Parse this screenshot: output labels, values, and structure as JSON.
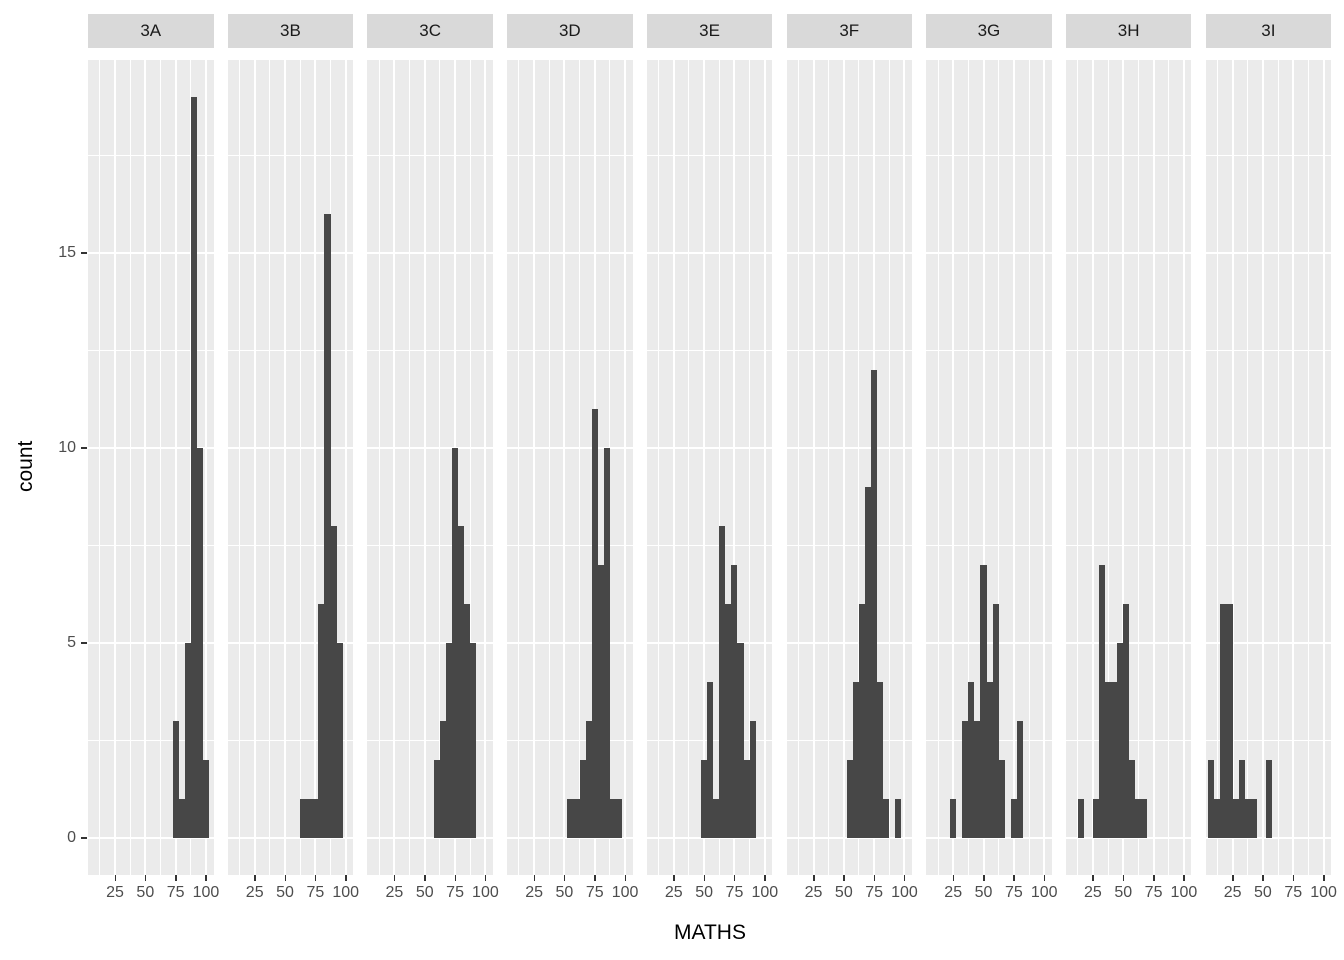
{
  "chart_data": {
    "type": "histogram",
    "faceted": true,
    "title": "",
    "xlabel": "MATHS",
    "ylabel": "count",
    "x_ticks": [
      25,
      50,
      75,
      100
    ],
    "x_minor_ticks": [
      12.5,
      37.5,
      62.5,
      87.5
    ],
    "y_ticks": [
      0,
      5,
      10,
      15
    ],
    "y_minor_ticks": [
      2.5,
      7.5,
      12.5,
      17.5
    ],
    "binwidth": 5,
    "xlim": [
      2.75,
      106.2
    ],
    "ylim": [
      -0.95,
      19.95
    ],
    "legend": "none",
    "grid": "on",
    "facets": [
      {
        "label": "3A",
        "bins": [
          {
            "x": 72.5,
            "count": 3
          },
          {
            "x": 77.5,
            "count": 1
          },
          {
            "x": 82.5,
            "count": 5
          },
          {
            "x": 87.5,
            "count": 19
          },
          {
            "x": 92.5,
            "count": 10
          },
          {
            "x": 97.5,
            "count": 2
          }
        ]
      },
      {
        "label": "3B",
        "bins": [
          {
            "x": 62.5,
            "count": 1
          },
          {
            "x": 67.5,
            "count": 1
          },
          {
            "x": 72.5,
            "count": 1
          },
          {
            "x": 77.5,
            "count": 6
          },
          {
            "x": 82.5,
            "count": 16
          },
          {
            "x": 87.5,
            "count": 8
          },
          {
            "x": 92.5,
            "count": 5
          }
        ]
      },
      {
        "label": "3C",
        "bins": [
          {
            "x": 57.5,
            "count": 2
          },
          {
            "x": 62.5,
            "count": 3
          },
          {
            "x": 67.5,
            "count": 5
          },
          {
            "x": 72.5,
            "count": 10
          },
          {
            "x": 77.5,
            "count": 8
          },
          {
            "x": 82.5,
            "count": 6
          },
          {
            "x": 87.5,
            "count": 5
          }
        ]
      },
      {
        "label": "3D",
        "bins": [
          {
            "x": 52.5,
            "count": 1
          },
          {
            "x": 57.5,
            "count": 1
          },
          {
            "x": 62.5,
            "count": 2
          },
          {
            "x": 67.5,
            "count": 3
          },
          {
            "x": 72.5,
            "count": 11
          },
          {
            "x": 77.5,
            "count": 7
          },
          {
            "x": 82.5,
            "count": 10
          },
          {
            "x": 87.5,
            "count": 1
          },
          {
            "x": 92.5,
            "count": 1
          }
        ]
      },
      {
        "label": "3E",
        "bins": [
          {
            "x": 47.5,
            "count": 2
          },
          {
            "x": 52.5,
            "count": 4
          },
          {
            "x": 57.5,
            "count": 1
          },
          {
            "x": 62.5,
            "count": 8
          },
          {
            "x": 67.5,
            "count": 6
          },
          {
            "x": 72.5,
            "count": 7
          },
          {
            "x": 77.5,
            "count": 5
          },
          {
            "x": 82.5,
            "count": 2
          },
          {
            "x": 87.5,
            "count": 3
          }
        ]
      },
      {
        "label": "3F",
        "bins": [
          {
            "x": 52.5,
            "count": 2
          },
          {
            "x": 57.5,
            "count": 4
          },
          {
            "x": 62.5,
            "count": 6
          },
          {
            "x": 67.5,
            "count": 9
          },
          {
            "x": 72.5,
            "count": 12
          },
          {
            "x": 77.5,
            "count": 4
          },
          {
            "x": 82.5,
            "count": 1
          },
          {
            "x": 92.5,
            "count": 1
          }
        ]
      },
      {
        "label": "3G",
        "bins": [
          {
            "x": 22.5,
            "count": 1
          },
          {
            "x": 32.5,
            "count": 3
          },
          {
            "x": 37.5,
            "count": 4
          },
          {
            "x": 42.5,
            "count": 3
          },
          {
            "x": 47.5,
            "count": 7
          },
          {
            "x": 52.5,
            "count": 4
          },
          {
            "x": 57.5,
            "count": 6
          },
          {
            "x": 62.5,
            "count": 2
          },
          {
            "x": 72.5,
            "count": 1
          },
          {
            "x": 77.5,
            "count": 3
          }
        ]
      },
      {
        "label": "3H",
        "bins": [
          {
            "x": 12.5,
            "count": 1
          },
          {
            "x": 25,
            "count": 1
          },
          {
            "x": 30,
            "count": 7
          },
          {
            "x": 35,
            "count": 4
          },
          {
            "x": 40,
            "count": 4
          },
          {
            "x": 45,
            "count": 5
          },
          {
            "x": 50,
            "count": 6
          },
          {
            "x": 55,
            "count": 2
          },
          {
            "x": 60,
            "count": 1
          },
          {
            "x": 65,
            "count": 1
          }
        ]
      },
      {
        "label": "3I",
        "bins": [
          {
            "x": 5,
            "count": 2
          },
          {
            "x": 10,
            "count": 1
          },
          {
            "x": 15,
            "count": 6
          },
          {
            "x": 20,
            "count": 6
          },
          {
            "x": 25,
            "count": 1
          },
          {
            "x": 30,
            "count": 2
          },
          {
            "x": 35,
            "count": 1
          },
          {
            "x": 40,
            "count": 1
          },
          {
            "x": 52.5,
            "count": 2
          }
        ]
      }
    ],
    "colors": {
      "bar": "#474747",
      "panel_bg": "#ebebeb",
      "strip_bg": "#d9d9d9",
      "gridline": "#ffffff",
      "tick_text": "#4d4d4d",
      "strip_text": "#1a1a1a",
      "axis_title_text": "#000000",
      "tick_mark": "#333333",
      "background": "#ffffff"
    }
  }
}
